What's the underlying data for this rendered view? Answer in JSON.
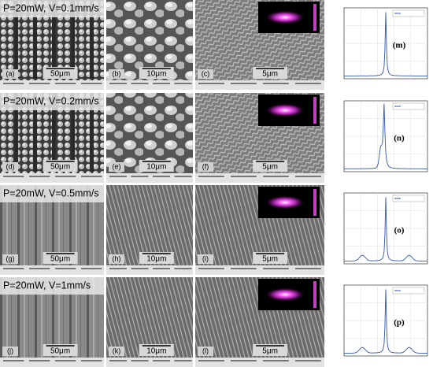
{
  "rows": [
    {
      "heading": "P=20mW, V=0.1mm/s",
      "panels": [
        {
          "label": "(a)",
          "scale": "50μm"
        },
        {
          "label": "(b)",
          "scale": "10μm"
        },
        {
          "label": "(c)",
          "scale": "5μm"
        }
      ],
      "plot_label": "(m)"
    },
    {
      "heading": "P=20mW, V=0.2mm/s",
      "panels": [
        {
          "label": "(d)",
          "scale": "50μm"
        },
        {
          "label": "(e)",
          "scale": "10μm"
        },
        {
          "label": "(f)",
          "scale": "5μm"
        }
      ],
      "plot_label": "(n)"
    },
    {
      "heading": "P=20mW, V=0.5mm/s",
      "panels": [
        {
          "label": "(g)",
          "scale": "50μm"
        },
        {
          "label": "(h)",
          "scale": "10μm"
        },
        {
          "label": "(i)",
          "scale": "5μm"
        }
      ],
      "plot_label": "(o)"
    },
    {
      "heading": "P=20mW, V=1mm/s",
      "panels": [
        {
          "label": "(j)",
          "scale": "50μm"
        },
        {
          "label": "(k)",
          "scale": "10μm"
        },
        {
          "label": "(l)",
          "scale": "5μm"
        }
      ],
      "plot_label": "(p)"
    }
  ]
}
